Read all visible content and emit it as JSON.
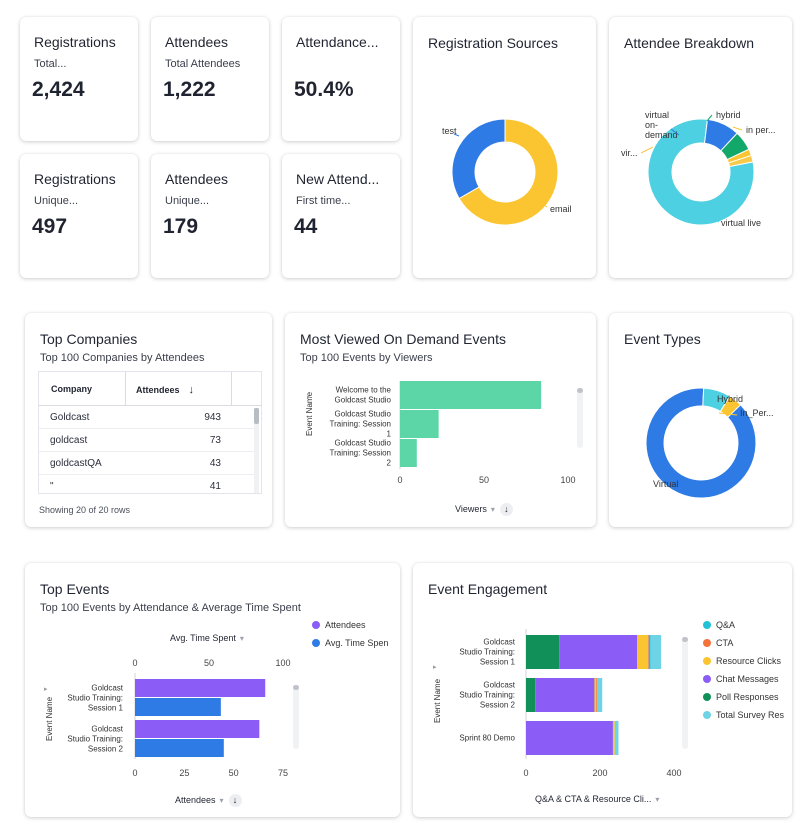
{
  "kpis": [
    {
      "title": "Registrations",
      "subtitle": "Total...",
      "value": "2,424"
    },
    {
      "title": "Attendees",
      "subtitle": "Total Attendees",
      "value": "1,222"
    },
    {
      "title": "Attendance...",
      "subtitle": "",
      "value": "50.4%"
    },
    {
      "title": "Registrations",
      "subtitle": "Unique...",
      "value": "497"
    },
    {
      "title": "Attendees",
      "subtitle": "Unique...",
      "value": "179"
    },
    {
      "title": "New Attend...",
      "subtitle": "First time...",
      "value": "44"
    }
  ],
  "registration_sources": {
    "title": "Registration Sources",
    "labels": {
      "test": "test",
      "email": "email"
    },
    "colors": {
      "email": "#fbc531",
      "test": "#2f7be5"
    }
  },
  "attendee_breakdown": {
    "title": "Attendee Breakdown",
    "labels": {
      "virtual_on_demand_1": "virtual",
      "virtual_on_demand_2": "on-",
      "virtual_on_demand_3": "demand",
      "hybrid": "hybrid",
      "in_person": "in per...",
      "vir": "vir...",
      "virtual_live": "virtual live"
    },
    "colors": {
      "virtual_live": "#4dd0e1",
      "virtual_on_demand": "#2f7be5",
      "hybrid": "#12a86a",
      "in_person": "#fbc531",
      "other": "#f7c948"
    }
  },
  "top_companies": {
    "title": "Top Companies",
    "subtitle": "Top 100 Companies by Attendees",
    "columns": [
      "Company",
      "Attendees"
    ],
    "sort_icon": "↓",
    "rows": [
      {
        "company": "Goldcast",
        "attendees": "943"
      },
      {
        "company": "goldcast",
        "attendees": "73"
      },
      {
        "company": "goldcastQA",
        "attendees": "43"
      },
      {
        "company": "\"",
        "attendees": "41"
      }
    ],
    "footer": "Showing 20 of 20 rows"
  },
  "most_viewed": {
    "title": "Most Viewed On Demand Events",
    "subtitle": "Top 100 Events by Viewers",
    "axis_title": "Event Name",
    "categories": [
      "Welcome to the|Goldcast Studio",
      "Goldcast Studio|Training: Session|1",
      "Goldcast Studio|Training: Session|2"
    ],
    "ticks": [
      "0",
      "50",
      "100"
    ],
    "x_control": "Viewers",
    "sort_icon": "↓",
    "color": "#5cd6a6"
  },
  "event_types": {
    "title": "Event Types",
    "labels": {
      "hybrid": "Hybrid",
      "in_person": "In_Per...",
      "virtual": "Virtual"
    },
    "colors": {
      "virtual": "#2f7be5",
      "hybrid": "#4dd0e1",
      "in_person": "#fbc531"
    }
  },
  "top_events": {
    "title": "Top Events",
    "subtitle": "Top 100 Events by Attendance & Average Time Spent",
    "top_control": "Avg. Time Spent",
    "top_ticks": [
      "0",
      "50",
      "100"
    ],
    "bottom_ticks": [
      "0",
      "25",
      "50",
      "75"
    ],
    "bottom_control": "Attendees",
    "sort_icon": "↓",
    "axis_title": "Event Name",
    "categories": [
      "Goldcast|Studio Training:|Session 1",
      "Goldcast|Studio Training:|Session 2"
    ],
    "legend": [
      {
        "label": "Attendees",
        "color": "#8b5cf6"
      },
      {
        "label": "Avg. Time Spen",
        "color": "#2f7be5"
      }
    ]
  },
  "event_engagement": {
    "title": "Event Engagement",
    "axis_title": "Event Name",
    "categories": [
      "Goldcast|Studio Training:|Session 1",
      "Goldcast|Studio Training:|Session 2",
      "Sprint 80 Demo"
    ],
    "ticks": [
      "0",
      "200",
      "400"
    ],
    "x_control": "Q&A & CTA & Resource Cli...",
    "legend": [
      {
        "label": "Q&A",
        "color": "#22c2d6"
      },
      {
        "label": "CTA",
        "color": "#f4733b"
      },
      {
        "label": "Resource Clicks",
        "color": "#fbc531"
      },
      {
        "label": "Chat Messages",
        "color": "#8b5cf6"
      },
      {
        "label": "Poll Responses",
        "color": "#12905a"
      },
      {
        "label": "Total Survey Res",
        "color": "#6fd3e6"
      }
    ]
  },
  "chart_data": [
    {
      "type": "pie",
      "name": "Registration Sources",
      "labels": [
        "email",
        "test"
      ],
      "values": [
        2.0,
        1.0
      ],
      "donut": true
    },
    {
      "type": "pie",
      "name": "Attendee Breakdown",
      "labels": [
        "virtual live",
        "virtual on-demand",
        "hybrid",
        "in per...",
        "vir..."
      ],
      "values": [
        80,
        10,
        6,
        2,
        2
      ],
      "donut": true
    },
    {
      "type": "bar",
      "name": "Most Viewed On Demand Events",
      "orientation": "horizontal",
      "categories": [
        "Welcome to the Goldcast Studio",
        "Goldcast Studio Training: Session 1",
        "Goldcast Studio Training: Session 2"
      ],
      "series": [
        {
          "name": "Viewers",
          "values": [
            84,
            23,
            10
          ]
        }
      ],
      "xlim": [
        0,
        100
      ]
    },
    {
      "type": "pie",
      "name": "Event Types",
      "labels": [
        "Virtual",
        "Hybrid",
        "In_Per..."
      ],
      "values": [
        88,
        8,
        4
      ],
      "donut": true
    },
    {
      "type": "bar",
      "name": "Top Events",
      "orientation": "horizontal",
      "categories": [
        "Goldcast Studio Training: Session 1",
        "Goldcast Studio Training: Session 2"
      ],
      "series": [
        {
          "name": "Attendees",
          "values": [
            66,
            63
          ],
          "axis": "bottom",
          "max": 75
        },
        {
          "name": "Avg. Time Spen",
          "values": [
            58,
            60
          ],
          "axis": "top",
          "max": 100
        }
      ]
    },
    {
      "type": "bar",
      "name": "Event Engagement",
      "orientation": "horizontal",
      "stacked": true,
      "categories": [
        "Goldcast Studio Training: Session 1",
        "Goldcast Studio Training: Session 2",
        "Sprint 80 Demo"
      ],
      "series": [
        {
          "name": "Poll Responses",
          "values": [
            90,
            25,
            0
          ]
        },
        {
          "name": "Chat Messages",
          "values": [
            210,
            160,
            235
          ]
        },
        {
          "name": "Resource Clicks",
          "values": [
            30,
            5,
            5
          ]
        },
        {
          "name": "CTA",
          "values": [
            2,
            2,
            0
          ]
        },
        {
          "name": "Q&A",
          "values": [
            5,
            0,
            0
          ]
        },
        {
          "name": "Total Survey Res",
          "values": [
            28,
            14,
            10
          ]
        }
      ],
      "xlim": [
        0,
        400
      ]
    }
  ]
}
